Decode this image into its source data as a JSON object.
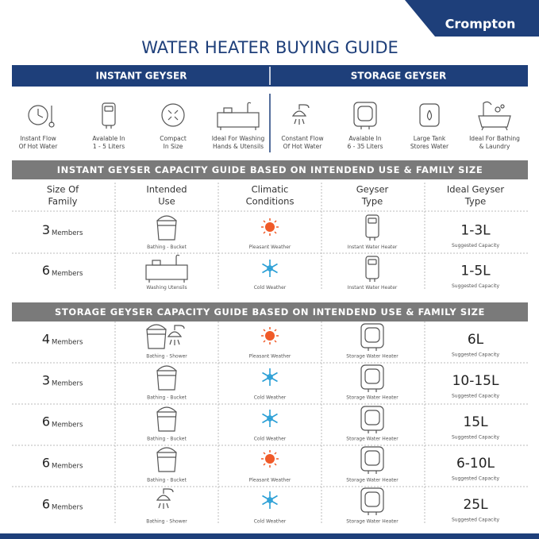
{
  "brand": "Crompton",
  "title": "WATER HEATER BUYING GUIDE",
  "tabs": [
    "INSTANT GEYSER",
    "STORAGE GEYSER"
  ],
  "features": [
    [
      "Instant Flow",
      "Of Hot Water"
    ],
    [
      "Avalable In",
      "1 - 5 Liters"
    ],
    [
      "Compact",
      "In Size"
    ],
    [
      "Ideal For Washing",
      "Hands & Utensils"
    ],
    [
      "Constant Flow",
      "Of Hot Water"
    ],
    [
      "Avalable In",
      "6 - 35 Liters"
    ],
    [
      "Large Tank",
      "Stores Water"
    ],
    [
      "Ideal For Bathing",
      "& Laundry"
    ]
  ],
  "columns": [
    [
      "Size Of",
      "Family"
    ],
    [
      "Intended",
      "Use"
    ],
    [
      "Climatic",
      "Conditions"
    ],
    [
      "Geyser",
      "Type"
    ],
    [
      "Ideal Geyser",
      "Type"
    ]
  ],
  "members_unit": "Members",
  "capacity_note": "Suggested Capacity",
  "sections": [
    {
      "title": "INSTANT GEYSER CAPACITY GUIDE BASED ON INTENDEND USE & FAMILY SIZE",
      "rows": [
        {
          "members": 3,
          "use": "Bathing - Bucket",
          "climate": "Pleasant Weather",
          "geyser": "Instant Water Heater",
          "capacity": "1-3L"
        },
        {
          "members": 6,
          "use": "Washing Utensils",
          "climate": "Cold Weather",
          "geyser": "Instant Water Heater",
          "capacity": "1-5L"
        }
      ]
    },
    {
      "title": "STORAGE GEYSER CAPACITY GUIDE BASED ON INTENDEND USE & FAMILY SIZE",
      "rows": [
        {
          "members": 4,
          "use": "Bathing - Shower",
          "climate": "Pleasant Weather",
          "geyser": "Storage Water Heater",
          "capacity": "6L"
        },
        {
          "members": 3,
          "use": "Bathing - Bucket",
          "climate": "Cold Weather",
          "geyser": "Storage Water Heater",
          "capacity": "10-15L"
        },
        {
          "members": 6,
          "use": "Bathing - Bucket",
          "climate": "Cold Weather",
          "geyser": "Storage Water Heater",
          "capacity": "15L"
        },
        {
          "members": 6,
          "use": "Bathing - Bucket",
          "climate": "Pleasant Weather",
          "geyser": "Storage Water Heater",
          "capacity": "6-10L"
        },
        {
          "members": 6,
          "use": "Bathing - Shower",
          "climate": "Cold Weather",
          "geyser": "Storage Water Heater",
          "capacity": "25L"
        }
      ]
    }
  ]
}
